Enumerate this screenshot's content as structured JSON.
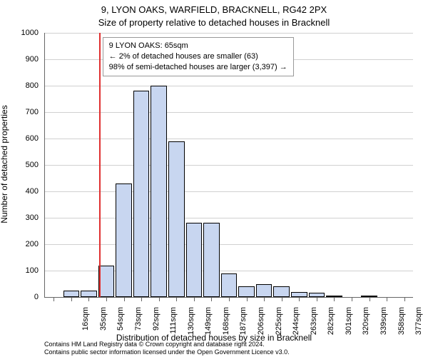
{
  "title_main": "9, LYON OAKS, WARFIELD, BRACKNELL, RG42 2PX",
  "title_sub": "Size of property relative to detached houses in Bracknell",
  "chart": {
    "type": "histogram",
    "xlabel": "Distribution of detached houses by size in Bracknell",
    "ylabel": "Number of detached properties",
    "ylim": [
      0,
      1000
    ],
    "ytick_step": 100,
    "grid_color": "#d0d0d0",
    "background_color": "#ffffff",
    "bar_fill": "#c8d6f0",
    "bar_border": "#000000",
    "vline_color": "#e03030",
    "vline_x_sqm": 65,
    "x_start": 16,
    "x_step": 19,
    "x_count": 21,
    "x_unit": "sqm",
    "bar_values": [
      0,
      25,
      25,
      120,
      430,
      780,
      800,
      590,
      280,
      280,
      90,
      40,
      50,
      40,
      20,
      15,
      5,
      0,
      5,
      0,
      0
    ],
    "label_fontsize": 12,
    "tick_fontsize": 11,
    "title_fontsize": 13
  },
  "legend": {
    "line1": "9 LYON OAKS: 65sqm",
    "line2": "← 2% of detached houses are smaller (63)",
    "line3": "98% of semi-detached houses are larger (3,397) →"
  },
  "footer": {
    "line1": "Contains HM Land Registry data © Crown copyright and database right 2024.",
    "line2": "Contains public sector information licensed under the Open Government Licence v3.0."
  }
}
